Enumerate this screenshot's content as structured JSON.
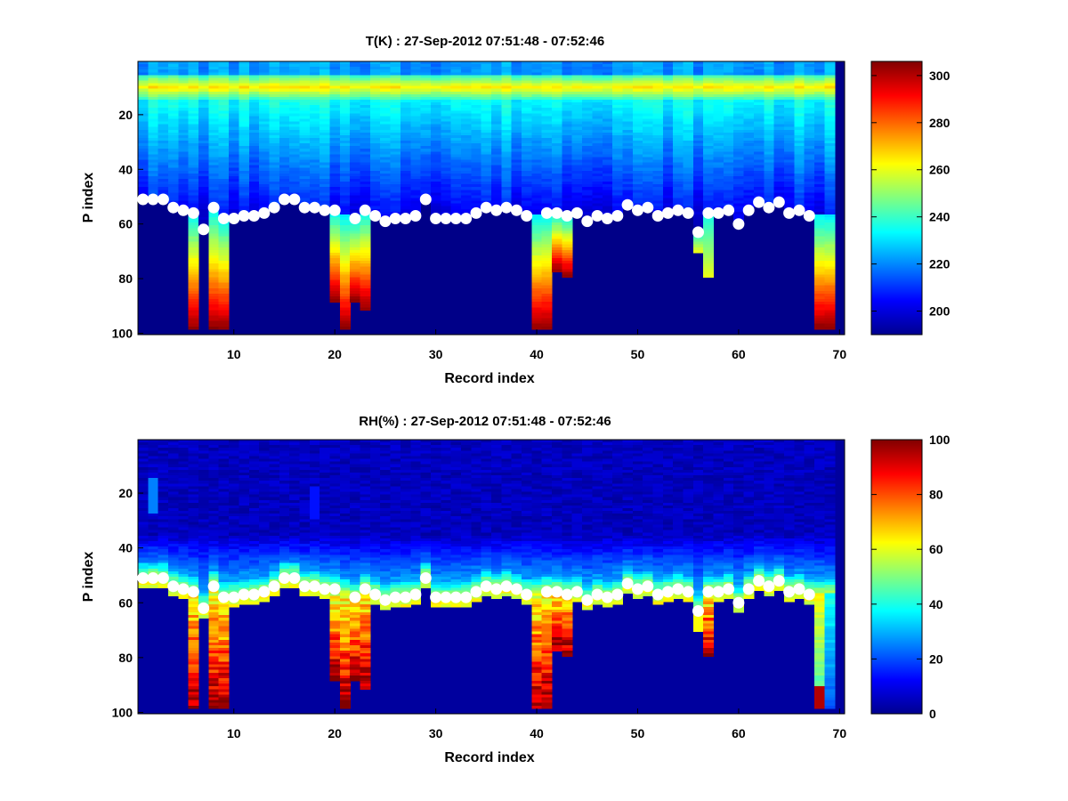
{
  "chart_data": [
    {
      "type": "heatmap",
      "title": "T(K) : 27-Sep-2012 07:51:48 - 07:52:46",
      "xlabel": "Record index",
      "ylabel": "P index",
      "x_range": [
        1,
        71
      ],
      "y_range": [
        1,
        101
      ],
      "y_reversed": true,
      "x_ticks": [
        "10",
        "20",
        "30",
        "40",
        "50",
        "60",
        "70"
      ],
      "y_ticks": [
        "20",
        "40",
        "60",
        "80",
        "100"
      ],
      "colorbar": {
        "colormap": "jet",
        "range": [
          190,
          306
        ],
        "ticks": [
          "200",
          "220",
          "240",
          "260",
          "280",
          "300"
        ]
      },
      "background_value": 191,
      "profile": {
        "description": "Temperature decreases from ~265 K near P index 10 to ~205 K near P index 50; below the surface marker it rises toward ~300 K where data exist",
        "band_warm_at_p": 10,
        "band_value": 263
      },
      "warm_columns": [
        6,
        8,
        9,
        20,
        21,
        22,
        23,
        40,
        41,
        42,
        43,
        56,
        57,
        68,
        69
      ],
      "markers": [
        {
          "x": 1,
          "p": 51
        },
        {
          "x": 2,
          "p": 51
        },
        {
          "x": 3,
          "p": 51
        },
        {
          "x": 4,
          "p": 54
        },
        {
          "x": 5,
          "p": 55
        },
        {
          "x": 6,
          "p": 56
        },
        {
          "x": 7,
          "p": 62
        },
        {
          "x": 8,
          "p": 54
        },
        {
          "x": 9,
          "p": 58
        },
        {
          "x": 10,
          "p": 58
        },
        {
          "x": 11,
          "p": 57
        },
        {
          "x": 12,
          "p": 57
        },
        {
          "x": 13,
          "p": 56
        },
        {
          "x": 14,
          "p": 54
        },
        {
          "x": 15,
          "p": 51
        },
        {
          "x": 16,
          "p": 51
        },
        {
          "x": 17,
          "p": 54
        },
        {
          "x": 18,
          "p": 54
        },
        {
          "x": 19,
          "p": 55
        },
        {
          "x": 20,
          "p": 55
        },
        {
          "x": 22,
          "p": 58
        },
        {
          "x": 23,
          "p": 55
        },
        {
          "x": 24,
          "p": 57
        },
        {
          "x": 25,
          "p": 59
        },
        {
          "x": 26,
          "p": 58
        },
        {
          "x": 27,
          "p": 58
        },
        {
          "x": 28,
          "p": 57
        },
        {
          "x": 29,
          "p": 51
        },
        {
          "x": 30,
          "p": 58
        },
        {
          "x": 31,
          "p": 58
        },
        {
          "x": 32,
          "p": 58
        },
        {
          "x": 33,
          "p": 58
        },
        {
          "x": 34,
          "p": 56
        },
        {
          "x": 35,
          "p": 54
        },
        {
          "x": 36,
          "p": 55
        },
        {
          "x": 37,
          "p": 54
        },
        {
          "x": 38,
          "p": 55
        },
        {
          "x": 39,
          "p": 57
        },
        {
          "x": 41,
          "p": 56
        },
        {
          "x": 42,
          "p": 56
        },
        {
          "x": 43,
          "p": 57
        },
        {
          "x": 44,
          "p": 56
        },
        {
          "x": 45,
          "p": 59
        },
        {
          "x": 46,
          "p": 57
        },
        {
          "x": 47,
          "p": 58
        },
        {
          "x": 48,
          "p": 57
        },
        {
          "x": 49,
          "p": 53
        },
        {
          "x": 50,
          "p": 55
        },
        {
          "x": 51,
          "p": 54
        },
        {
          "x": 52,
          "p": 57
        },
        {
          "x": 53,
          "p": 56
        },
        {
          "x": 54,
          "p": 55
        },
        {
          "x": 55,
          "p": 56
        },
        {
          "x": 56,
          "p": 63
        },
        {
          "x": 57,
          "p": 56
        },
        {
          "x": 58,
          "p": 56
        },
        {
          "x": 59,
          "p": 55
        },
        {
          "x": 60,
          "p": 60
        },
        {
          "x": 61,
          "p": 55
        },
        {
          "x": 62,
          "p": 52
        },
        {
          "x": 63,
          "p": 54
        },
        {
          "x": 64,
          "p": 52
        },
        {
          "x": 65,
          "p": 56
        },
        {
          "x": 66,
          "p": 55
        },
        {
          "x": 67,
          "p": 57
        }
      ]
    },
    {
      "type": "heatmap",
      "title": "RH(%) : 27-Sep-2012 07:51:48 - 07:52:46",
      "xlabel": "Record index",
      "ylabel": "P index",
      "x_range": [
        1,
        71
      ],
      "y_range": [
        1,
        101
      ],
      "y_reversed": true,
      "x_ticks": [
        "10",
        "20",
        "30",
        "40",
        "50",
        "60",
        "70"
      ],
      "y_ticks": [
        "20",
        "40",
        "60",
        "80",
        "100"
      ],
      "colorbar": {
        "colormap": "jet",
        "range": [
          0,
          100
        ],
        "ticks": [
          "0",
          "20",
          "40",
          "60",
          "80",
          "100"
        ]
      },
      "background_value": 3,
      "profile": {
        "description": "Relative humidity near 0-10% aloft, increasing to ~30-50% just above the surface marker and 60-100% in the saturated columns below it"
      },
      "wet_columns": [
        6,
        8,
        9,
        20,
        21,
        22,
        23,
        40,
        41,
        42,
        43,
        56,
        57,
        68,
        69
      ],
      "markers": "same as T(K) panel"
    }
  ]
}
